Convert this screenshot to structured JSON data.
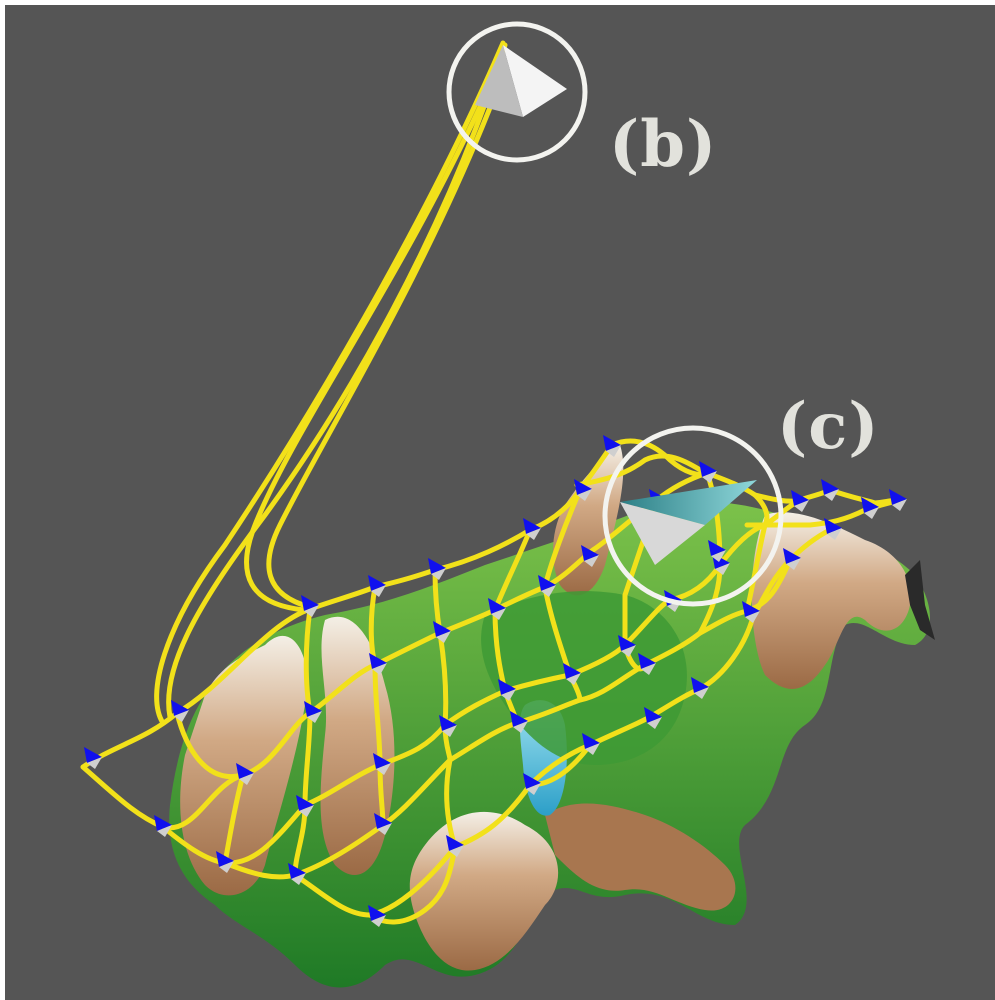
{
  "scene": {
    "background": "#555555",
    "network_color": "#f2e11a",
    "node_marker_colors": [
      "#1010ee",
      "#cfcfcf"
    ],
    "terrain_colors": [
      "#2f8f2a",
      "#63b33f",
      "#c59a78",
      "#f2eee6",
      "#5cc3e0"
    ],
    "highlight_ring_color": "#f3f3ef"
  },
  "labels": {
    "b": "(b)",
    "c": "(c)"
  }
}
